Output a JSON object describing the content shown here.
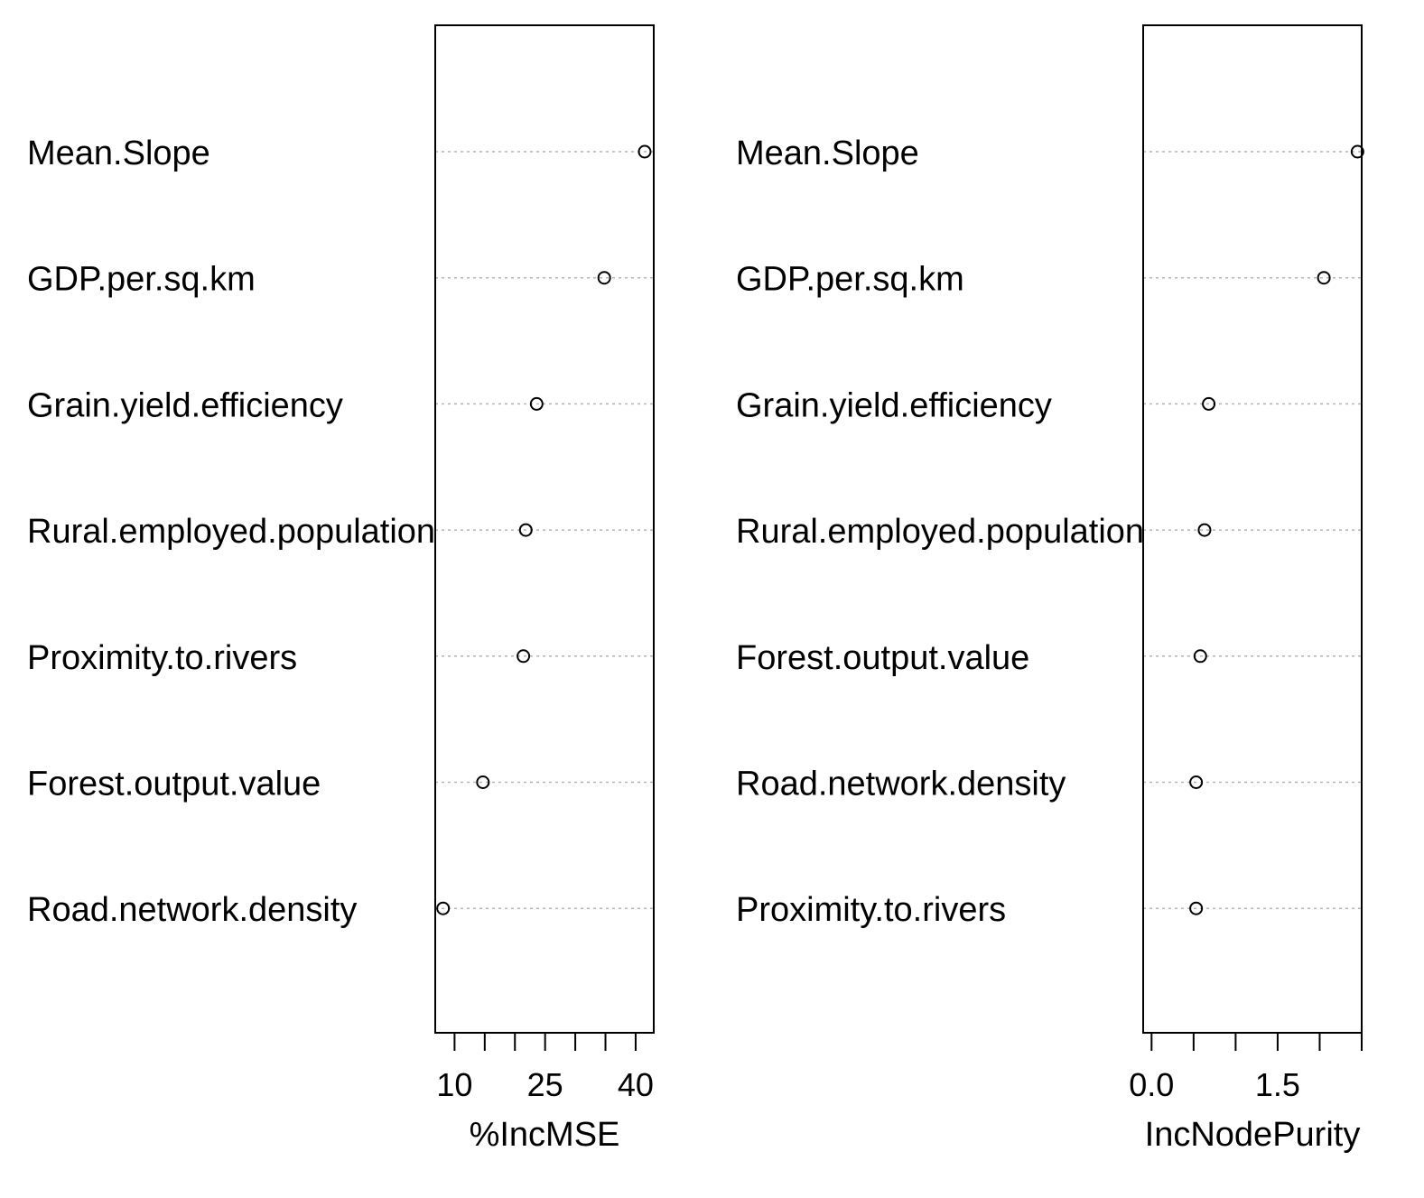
{
  "chart_data": [
    {
      "type": "scatter",
      "style": "dotchart",
      "xlabel": "%IncMSE",
      "variables": [
        "Mean.Slope",
        "GDP.per.sq.km",
        "Grain.yield.efficiency",
        "Rural.employed.population",
        "Proximity.to.rivers",
        "Forest.output.value",
        "Road.network.density"
      ],
      "values": [
        41.5,
        34.8,
        23.6,
        21.8,
        21.4,
        14.7,
        8.1
      ],
      "xlim": [
        6.8,
        43.0
      ],
      "ticks": [
        10,
        15,
        20,
        25,
        30,
        35,
        40
      ],
      "tick_labels": [
        "10",
        "25",
        "40"
      ],
      "tick_label_values": [
        10,
        25,
        40
      ],
      "grid": "horizontal dotted lines"
    },
    {
      "type": "scatter",
      "style": "dotchart",
      "xlabel": "IncNodePurity",
      "variables": [
        "Mean.Slope",
        "GDP.per.sq.km",
        "Grain.yield.efficiency",
        "Rural.employed.population",
        "Forest.output.value",
        "Road.network.density",
        "Proximity.to.rivers"
      ],
      "values": [
        2.45,
        2.05,
        0.68,
        0.63,
        0.58,
        0.53,
        0.53
      ],
      "xlim": [
        -0.1,
        2.5
      ],
      "ticks": [
        0.0,
        0.5,
        1.0,
        1.5,
        2.0,
        2.5
      ],
      "tick_labels": [
        "0.0",
        "1.5"
      ],
      "tick_label_values": [
        0.0,
        1.5
      ],
      "grid": "horizontal dotted lines"
    }
  ]
}
